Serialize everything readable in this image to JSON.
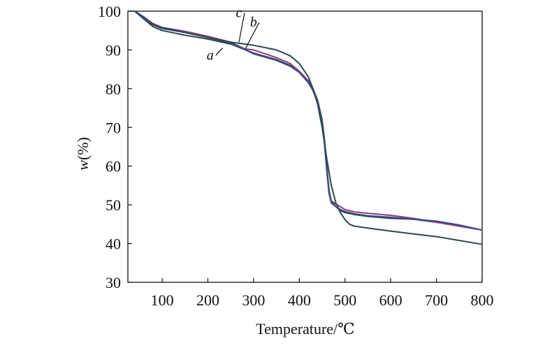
{
  "chart_data": {
    "type": "line",
    "title": "",
    "xlabel": "Temperature/℃",
    "ylabel_italic": "w",
    "ylabel_rest": "(%)",
    "xlim": [
      25,
      800
    ],
    "ylim": [
      30,
      100
    ],
    "xticks": [
      100,
      200,
      300,
      400,
      500,
      600,
      700,
      800
    ],
    "yticks": [
      30,
      40,
      50,
      60,
      70,
      80,
      90,
      100
    ],
    "grid": false,
    "series": [
      {
        "name": "a",
        "color": "#2e4a4c",
        "x": [
          25,
          40,
          60,
          80,
          100,
          150,
          200,
          250,
          300,
          350,
          380,
          400,
          420,
          430,
          440,
          450,
          455,
          460,
          465,
          470,
          480,
          490,
          500,
          520,
          550,
          600,
          650,
          700,
          750,
          800
        ],
        "y": [
          100,
          100,
          98,
          96,
          95,
          93.8,
          92.8,
          91.5,
          89.2,
          87.5,
          86,
          84.5,
          82,
          80,
          77,
          72,
          67,
          60,
          54,
          51,
          49.5,
          48.5,
          48,
          47.5,
          47,
          46.5,
          46.3,
          45.5,
          44.5,
          43.5
        ]
      },
      {
        "name": "b",
        "color": "#8a3f7e",
        "x": [
          25,
          40,
          60,
          80,
          100,
          150,
          200,
          250,
          280,
          300,
          350,
          380,
          400,
          420,
          430,
          440,
          450,
          455,
          460,
          465,
          470,
          480,
          490,
          500,
          520,
          550,
          600,
          650,
          700,
          750,
          800
        ],
        "y": [
          100,
          100,
          98.5,
          96.8,
          95.8,
          94.8,
          93.5,
          92,
          90.3,
          90,
          88,
          86.5,
          84.5,
          82,
          79.5,
          76.5,
          71.5,
          66,
          59,
          53.5,
          51,
          50.2,
          49.5,
          48.8,
          48.2,
          47.8,
          47.3,
          46.5,
          45.5,
          44.5,
          43.5
        ]
      },
      {
        "name": "c",
        "color": "#3a4a86",
        "x": [
          25,
          40,
          60,
          80,
          100,
          150,
          200,
          250,
          300,
          350,
          380,
          400,
          420,
          430,
          440,
          450,
          455,
          460,
          465,
          470,
          480,
          490,
          500,
          520,
          550,
          600,
          650,
          700,
          750,
          800
        ],
        "y": [
          100,
          100,
          98.5,
          96.5,
          95.5,
          94.5,
          93.2,
          91.8,
          89,
          87.3,
          85.8,
          84.2,
          81.5,
          79.5,
          76.5,
          71.5,
          66,
          59,
          53,
          50.5,
          49.5,
          48.8,
          48.3,
          47.7,
          47.2,
          46.8,
          46.3,
          45.8,
          44.8,
          43.5
        ]
      },
      {
        "name": "a (lower curve)",
        "color": "#2a4a4c",
        "hidden_label": true,
        "x": [
          25,
          40,
          60,
          80,
          100,
          150,
          200,
          250,
          300,
          350,
          380,
          400,
          420,
          430,
          440,
          450,
          460,
          470,
          480,
          490,
          500,
          510,
          520,
          550,
          600,
          650,
          700,
          750,
          800
        ],
        "y": [
          100,
          100,
          98,
          96.5,
          95.8,
          94.5,
          93.2,
          92,
          91.2,
          90,
          88.5,
          86.5,
          83,
          80,
          76,
          70,
          62,
          55,
          50.5,
          48,
          46.2,
          45,
          44.5,
          44,
          43.2,
          42.5,
          41.8,
          40.8,
          39.8
        ]
      }
    ],
    "annotations": [
      {
        "text": "a",
        "x": 205,
        "y": 87.5,
        "line_to": [
          232,
          90.5
        ]
      },
      {
        "text": "b",
        "x": 300,
        "y": 96,
        "line_to": [
          282,
          90.3
        ]
      },
      {
        "text": "c",
        "x": 268,
        "y": 98.5,
        "line_to": [
          268,
          92
        ]
      }
    ]
  }
}
